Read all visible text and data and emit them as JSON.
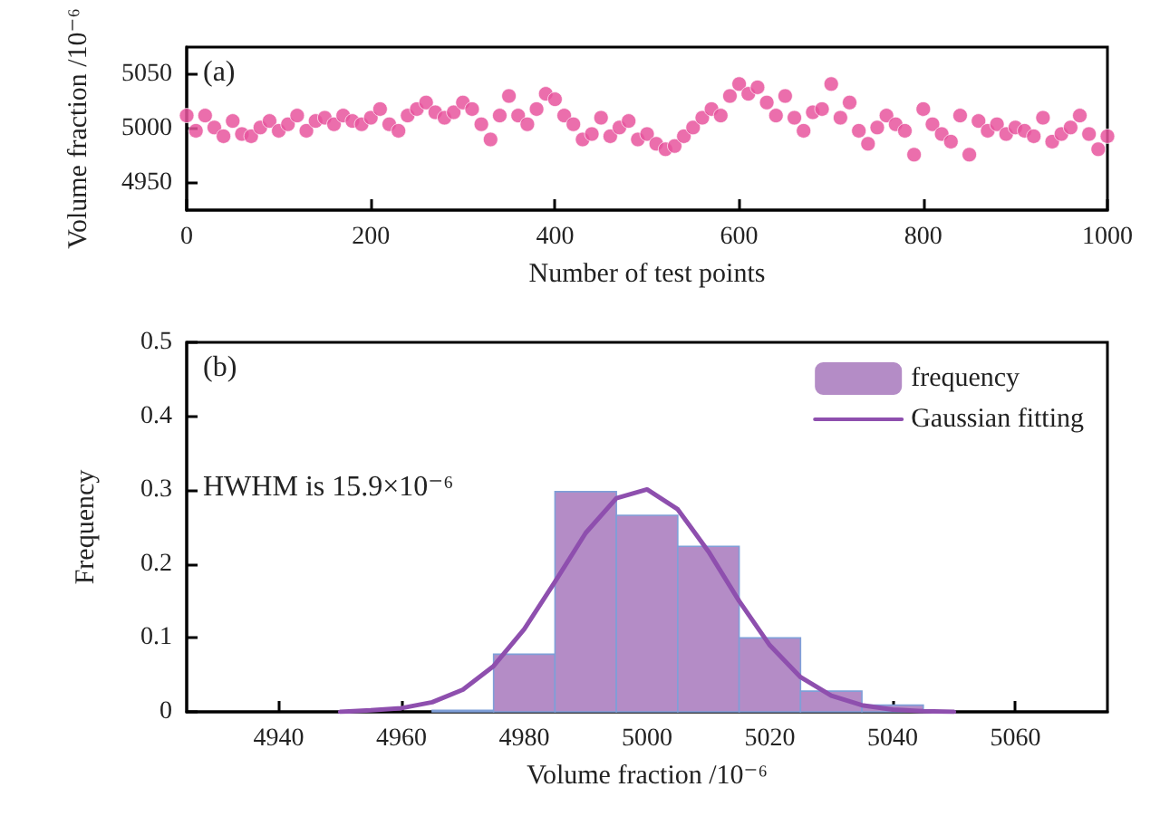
{
  "chart_data": [
    {
      "type": "scatter",
      "xlabel": "Number of test points",
      "ylabel": "Volume fraction /10⁻⁶",
      "annotations": [
        "(a)"
      ],
      "marker": "circle",
      "xlim": [
        0,
        1000
      ],
      "xticks": [
        0,
        200,
        400,
        600,
        800,
        1000
      ],
      "ylim": [
        4925,
        5075
      ],
      "yticks": [
        4950,
        5000,
        5050
      ],
      "series": [
        {
          "color": "#e8559e",
          "x": [
            0,
            10,
            20,
            30,
            40,
            50,
            60,
            70,
            80,
            90,
            100,
            110,
            120,
            130,
            140,
            150,
            160,
            170,
            180,
            190,
            200,
            210,
            220,
            230,
            240,
            250,
            260,
            270,
            280,
            290,
            300,
            310,
            320,
            330,
            340,
            350,
            360,
            370,
            380,
            390,
            400,
            410,
            420,
            430,
            440,
            450,
            460,
            470,
            480,
            490,
            500,
            510,
            520,
            530,
            540,
            550,
            560,
            570,
            580,
            590,
            600,
            610,
            620,
            630,
            640,
            650,
            660,
            670,
            680,
            690,
            700,
            710,
            720,
            730,
            740,
            750,
            760,
            770,
            780,
            790,
            800,
            810,
            820,
            830,
            840,
            850,
            860,
            870,
            880,
            890,
            900,
            910,
            920,
            930,
            940,
            950,
            960,
            970,
            980,
            990,
            1000
          ],
          "values": [
            5012,
            4998,
            5012,
            5001,
            4993,
            5007,
            4995,
            4993,
            5001,
            5007,
            4998,
            5004,
            5012,
            4998,
            5007,
            5010,
            5004,
            5012,
            5007,
            5004,
            5010,
            5018,
            5004,
            4998,
            5012,
            5018,
            5024,
            5015,
            5010,
            5015,
            5024,
            5018,
            5004,
            4990,
            5012,
            5030,
            5012,
            5004,
            5018,
            5032,
            5027,
            5012,
            5004,
            4990,
            4995,
            5010,
            4993,
            5001,
            5007,
            4990,
            4995,
            4986,
            4981,
            4984,
            4993,
            5001,
            5010,
            5018,
            5012,
            5030,
            5041,
            5032,
            5038,
            5024,
            5012,
            5030,
            5010,
            4998,
            5015,
            5018,
            5041,
            5010,
            5024,
            4998,
            4986,
            5001,
            5012,
            5004,
            4998,
            4976,
            5018,
            5004,
            4995,
            4988,
            5012,
            4976,
            5007,
            4998,
            5004,
            4995,
            5001,
            4998,
            4993,
            5010,
            4988,
            4995,
            5001,
            5012,
            4995,
            4981,
            4993
          ]
        }
      ]
    },
    {
      "type": "histogram",
      "xlabel": "Volume fraction /10⁻⁶",
      "ylabel": "Frequency",
      "annotations": [
        "(b)",
        "HWHM is 15.9×10⁻⁶"
      ],
      "legend": "top right",
      "xlim": [
        4925,
        5075
      ],
      "xticks": [
        4940,
        4960,
        4980,
        5000,
        5020,
        5040,
        5060
      ],
      "ylim": [
        0,
        0.5
      ],
      "yticks": [
        0,
        0.1,
        0.2,
        0.3,
        0.4,
        0.5
      ],
      "series": [
        {
          "name": "frequency",
          "color": "#b48cc6",
          "bins": [
            4965,
            4975,
            4985,
            4995,
            5005,
            5015,
            5025,
            5035,
            5045
          ],
          "values": [
            0.002,
            0.078,
            0.298,
            0.266,
            0.224,
            0.1,
            0.028,
            0.009
          ]
        },
        {
          "name": "Gaussian fitting",
          "type": "line",
          "color": "#8e4fae",
          "x": [
            4950,
            4955,
            4960,
            4965,
            4970,
            4975,
            4980,
            4985,
            4990,
            4995,
            5000,
            5005,
            5010,
            5015,
            5020,
            5025,
            5030,
            5035,
            5040,
            5045,
            5050
          ],
          "values": [
            0,
            0.002,
            0.005,
            0.013,
            0.03,
            0.062,
            0.112,
            0.176,
            0.242,
            0.289,
            0.301,
            0.274,
            0.217,
            0.15,
            0.09,
            0.047,
            0.022,
            0.009,
            0.003,
            0.001,
            0
          ]
        }
      ]
    }
  ]
}
